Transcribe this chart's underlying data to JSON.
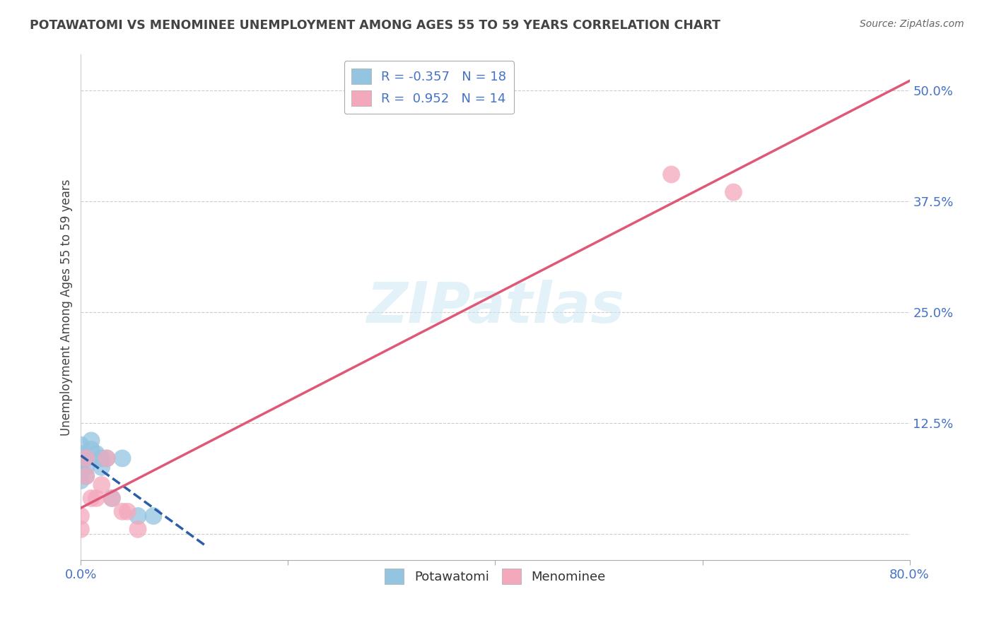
{
  "title": "POTAWATOMI VS MENOMINEE UNEMPLOYMENT AMONG AGES 55 TO 59 YEARS CORRELATION CHART",
  "source": "Source: ZipAtlas.com",
  "ylabel": "Unemployment Among Ages 55 to 59 years",
  "xlim": [
    0.0,
    0.8
  ],
  "ylim": [
    -0.03,
    0.54
  ],
  "xticks": [
    0.0,
    0.2,
    0.4,
    0.6,
    0.8
  ],
  "xticklabels_show": [
    "0.0%",
    "",
    "",
    "",
    "80.0%"
  ],
  "ytick_positions": [
    0.0,
    0.125,
    0.25,
    0.375,
    0.5
  ],
  "yticklabels": [
    "",
    "12.5%",
    "25.0%",
    "37.5%",
    "50.0%"
  ],
  "watermark": "ZIPatlas",
  "legend_blue_label": "Potawatomi",
  "legend_pink_label": "Menominee",
  "R_blue": -0.357,
  "N_blue": 18,
  "R_pink": 0.952,
  "N_pink": 14,
  "blue_color": "#93c4e0",
  "pink_color": "#f4a8bc",
  "blue_line_color": "#2c5ea8",
  "pink_line_color": "#e05878",
  "blue_scatter_x": [
    0.0,
    0.0,
    0.0,
    0.0,
    0.0,
    0.005,
    0.005,
    0.005,
    0.01,
    0.01,
    0.015,
    0.02,
    0.02,
    0.025,
    0.03,
    0.04,
    0.055,
    0.07
  ],
  "blue_scatter_y": [
    0.1,
    0.09,
    0.08,
    0.07,
    0.06,
    0.085,
    0.075,
    0.065,
    0.095,
    0.105,
    0.09,
    0.085,
    0.075,
    0.085,
    0.04,
    0.085,
    0.02,
    0.02
  ],
  "pink_scatter_x": [
    0.0,
    0.0,
    0.005,
    0.005,
    0.01,
    0.015,
    0.02,
    0.025,
    0.03,
    0.04,
    0.045,
    0.055,
    0.57,
    0.63
  ],
  "pink_scatter_y": [
    0.005,
    0.02,
    0.065,
    0.085,
    0.04,
    0.04,
    0.055,
    0.085,
    0.04,
    0.025,
    0.025,
    0.005,
    0.405,
    0.385
  ],
  "background_color": "#ffffff",
  "grid_color": "#cccccc",
  "title_color": "#444444",
  "axis_label_color": "#444444",
  "tick_color": "#4472c4",
  "source_color": "#666666"
}
